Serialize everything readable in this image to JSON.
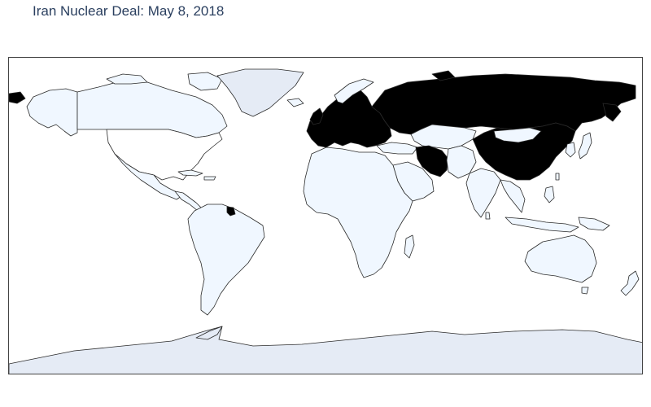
{
  "title": "Iran Nuclear Deal: May 8, 2018",
  "map": {
    "projection": "equirectangular",
    "colors": {
      "signatory": "#000000",
      "other": "#f0f7ff",
      "land_unknown": "#ffffff",
      "antarctica_greenland": "#e5ebf5",
      "border": "#2a2a2a",
      "frame": "#444444",
      "background": "#ffffff"
    },
    "highlighted_regions": [
      "European Union",
      "Russia",
      "China",
      "Iran",
      "French Guiana"
    ]
  }
}
